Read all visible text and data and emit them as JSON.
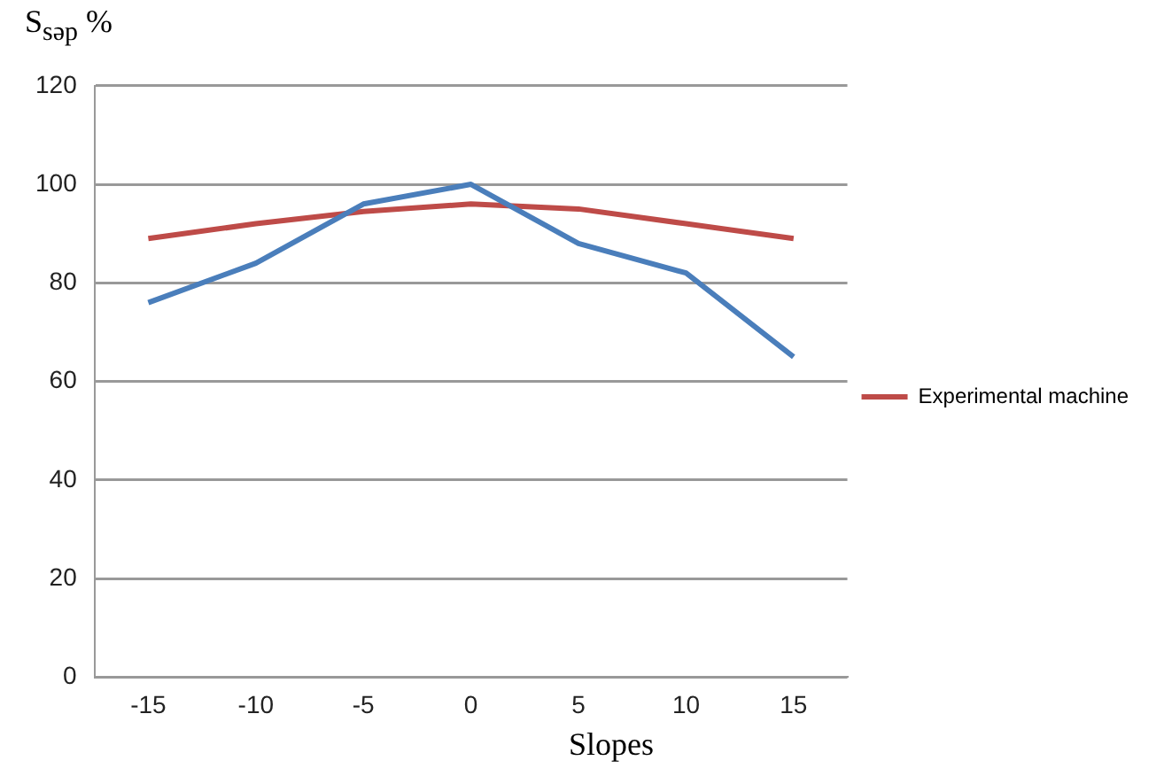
{
  "chart_data": {
    "type": "line",
    "ylabel": "S$_{səp}$ %",
    "xlabel": "Slopes",
    "categories": [
      "-15",
      "-10",
      "-5",
      "0",
      "5",
      "10",
      "15"
    ],
    "series": [
      {
        "color": "#4a7ebb",
        "values": [
          76,
          84,
          96,
          100,
          88,
          82,
          65
        ]
      },
      {
        "name": "Experimental machine",
        "color": "#be4b48",
        "values": [
          89,
          92,
          94.5,
          96,
          95,
          92,
          89
        ]
      }
    ],
    "ylim": [
      0,
      120
    ],
    "yticks": [
      0,
      20,
      40,
      60,
      80,
      100,
      120
    ],
    "grid": "y",
    "legend": "right",
    "marker": "none",
    "line_style": "solid"
  }
}
